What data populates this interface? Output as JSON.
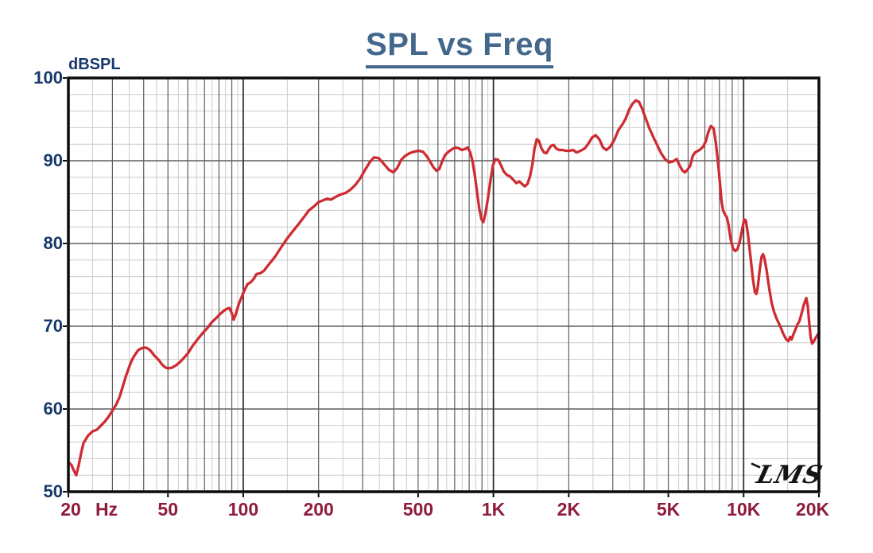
{
  "header": {
    "title": "SPL vs Freq"
  },
  "logo": {
    "text": "LMS"
  },
  "colors": {
    "curve": "#ce2b33",
    "title": "#44688c",
    "y_axis_text": "#17386b",
    "x_axis_text": "#8e1c3c",
    "grid_minor": "#cccccc",
    "grid_major": "#5e5e5e",
    "grid_decade": "#333333",
    "frame": "#0a0a0a",
    "logo": "#141414"
  },
  "chart_data": {
    "type": "line",
    "title": "SPL vs Freq",
    "ylabel": "dBSPL",
    "x_unit_label": "Hz",
    "x_scale": "log",
    "xlim": [
      20,
      20000
    ],
    "ylim": [
      50,
      100
    ],
    "y_major_step": 10,
    "y_minor_step": 2,
    "grid": "on",
    "legend": "none",
    "y_ticks": [
      100,
      90,
      80,
      70,
      60,
      50
    ],
    "x_ticks": [
      {
        "f": 20,
        "label": "20"
      },
      {
        "f": 50,
        "label": "50"
      },
      {
        "f": 100,
        "label": "100"
      },
      {
        "f": 200,
        "label": "200"
      },
      {
        "f": 500,
        "label": "500"
      },
      {
        "f": 1000,
        "label": "1K"
      },
      {
        "f": 2000,
        "label": "2K"
      },
      {
        "f": 5000,
        "label": "5K"
      },
      {
        "f": 10000,
        "label": "10K"
      },
      {
        "f": 20000,
        "label": "20K"
      }
    ],
    "series": [
      {
        "name": "SPL",
        "points": [
          [
            20,
            53.6
          ],
          [
            20.6,
            53.2
          ],
          [
            21,
            52.6
          ],
          [
            21.5,
            52.0
          ],
          [
            22,
            53.2
          ],
          [
            22.5,
            54.7
          ],
          [
            23,
            55.9
          ],
          [
            24,
            56.8
          ],
          [
            25,
            57.3
          ],
          [
            26,
            57.5
          ],
          [
            27,
            58.0
          ],
          [
            28,
            58.5
          ],
          [
            29,
            59.1
          ],
          [
            30,
            59.8
          ],
          [
            31,
            60.5
          ],
          [
            32,
            61.4
          ],
          [
            33,
            62.7
          ],
          [
            34,
            64.0
          ],
          [
            35,
            65.1
          ],
          [
            36,
            66.0
          ],
          [
            37,
            66.6
          ],
          [
            38,
            67.1
          ],
          [
            39,
            67.3
          ],
          [
            40,
            67.4
          ],
          [
            41,
            67.4
          ],
          [
            42,
            67.2
          ],
          [
            43,
            66.9
          ],
          [
            44,
            66.5
          ],
          [
            45,
            66.2
          ],
          [
            46,
            65.9
          ],
          [
            47,
            65.5
          ],
          [
            48,
            65.2
          ],
          [
            49,
            65.0
          ],
          [
            50,
            64.9
          ],
          [
            52,
            65.0
          ],
          [
            54,
            65.3
          ],
          [
            56,
            65.7
          ],
          [
            58,
            66.2
          ],
          [
            60,
            66.7
          ],
          [
            63,
            67.7
          ],
          [
            66,
            68.5
          ],
          [
            69,
            69.2
          ],
          [
            72,
            69.8
          ],
          [
            75,
            70.5
          ],
          [
            78,
            71.0
          ],
          [
            81,
            71.5
          ],
          [
            84,
            71.9
          ],
          [
            86,
            72.1
          ],
          [
            88,
            72.2
          ],
          [
            90,
            71.6
          ],
          [
            91.5,
            70.8
          ],
          [
            93,
            71.3
          ],
          [
            96,
            72.7
          ],
          [
            100,
            74.0
          ],
          [
            104,
            75.1
          ],
          [
            107,
            75.3
          ],
          [
            110,
            75.7
          ],
          [
            113,
            76.3
          ],
          [
            117,
            76.4
          ],
          [
            121,
            76.7
          ],
          [
            126,
            77.4
          ],
          [
            130,
            77.9
          ],
          [
            134,
            78.4
          ],
          [
            138,
            79.0
          ],
          [
            143,
            79.7
          ],
          [
            149,
            80.5
          ],
          [
            157,
            81.4
          ],
          [
            165,
            82.2
          ],
          [
            174,
            83.1
          ],
          [
            183,
            84.0
          ],
          [
            192,
            84.5
          ],
          [
            200,
            85.0
          ],
          [
            208,
            85.2
          ],
          [
            216,
            85.4
          ],
          [
            224,
            85.3
          ],
          [
            233,
            85.6
          ],
          [
            244,
            85.9
          ],
          [
            256,
            86.1
          ],
          [
            268,
            86.5
          ],
          [
            281,
            87.1
          ],
          [
            294,
            87.9
          ],
          [
            307,
            88.9
          ],
          [
            320,
            89.8
          ],
          [
            333,
            90.4
          ],
          [
            348,
            90.3
          ],
          [
            365,
            89.6
          ],
          [
            382,
            88.9
          ],
          [
            398,
            88.6
          ],
          [
            412,
            89.1
          ],
          [
            428,
            90.1
          ],
          [
            444,
            90.6
          ],
          [
            462,
            90.9
          ],
          [
            482,
            91.1
          ],
          [
            502,
            91.2
          ],
          [
            522,
            91.1
          ],
          [
            540,
            90.6
          ],
          [
            558,
            89.9
          ],
          [
            576,
            89.2
          ],
          [
            592,
            88.8
          ],
          [
            608,
            89.0
          ],
          [
            625,
            90.0
          ],
          [
            642,
            90.7
          ],
          [
            662,
            91.1
          ],
          [
            684,
            91.4
          ],
          [
            706,
            91.6
          ],
          [
            728,
            91.5
          ],
          [
            748,
            91.3
          ],
          [
            768,
            91.4
          ],
          [
            788,
            91.6
          ],
          [
            806,
            91.1
          ],
          [
            824,
            90.0
          ],
          [
            842,
            88.3
          ],
          [
            860,
            86.2
          ],
          [
            878,
            84.2
          ],
          [
            896,
            82.9
          ],
          [
            912,
            82.6
          ],
          [
            930,
            83.7
          ],
          [
            952,
            85.6
          ],
          [
            974,
            87.7
          ],
          [
            996,
            89.5
          ],
          [
            1020,
            90.2
          ],
          [
            1045,
            90.1
          ],
          [
            1070,
            89.5
          ],
          [
            1100,
            88.7
          ],
          [
            1130,
            88.3
          ],
          [
            1165,
            88.1
          ],
          [
            1200,
            87.7
          ],
          [
            1235,
            87.3
          ],
          [
            1268,
            87.5
          ],
          [
            1300,
            87.2
          ],
          [
            1335,
            86.9
          ],
          [
            1368,
            87.2
          ],
          [
            1400,
            88.1
          ],
          [
            1430,
            89.5
          ],
          [
            1460,
            91.5
          ],
          [
            1490,
            92.6
          ],
          [
            1520,
            92.4
          ],
          [
            1556,
            91.5
          ],
          [
            1592,
            91.0
          ],
          [
            1628,
            90.9
          ],
          [
            1664,
            91.4
          ],
          [
            1700,
            91.8
          ],
          [
            1740,
            91.9
          ],
          [
            1780,
            91.5
          ],
          [
            1830,
            91.3
          ],
          [
            1890,
            91.3
          ],
          [
            1950,
            91.2
          ],
          [
            2010,
            91.2
          ],
          [
            2080,
            91.3
          ],
          [
            2150,
            91.0
          ],
          [
            2230,
            91.2
          ],
          [
            2320,
            91.5
          ],
          [
            2400,
            92.1
          ],
          [
            2480,
            92.8
          ],
          [
            2560,
            93.1
          ],
          [
            2650,
            92.6
          ],
          [
            2740,
            91.6
          ],
          [
            2830,
            91.3
          ],
          [
            2930,
            91.7
          ],
          [
            3040,
            92.5
          ],
          [
            3160,
            93.7
          ],
          [
            3280,
            94.4
          ],
          [
            3380,
            95.1
          ],
          [
            3490,
            96.2
          ],
          [
            3600,
            96.9
          ],
          [
            3710,
            97.3
          ],
          [
            3820,
            97.1
          ],
          [
            3930,
            96.3
          ],
          [
            4050,
            95.2
          ],
          [
            4190,
            94.0
          ],
          [
            4350,
            92.9
          ],
          [
            4510,
            91.9
          ],
          [
            4680,
            90.9
          ],
          [
            4850,
            90.2
          ],
          [
            5030,
            89.8
          ],
          [
            5210,
            89.9
          ],
          [
            5400,
            90.2
          ],
          [
            5530,
            89.5
          ],
          [
            5700,
            88.8
          ],
          [
            5830,
            88.6
          ],
          [
            5960,
            88.9
          ],
          [
            6120,
            89.4
          ],
          [
            6260,
            90.6
          ],
          [
            6400,
            91.0
          ],
          [
            6580,
            91.2
          ],
          [
            6730,
            91.4
          ],
          [
            6890,
            91.7
          ],
          [
            7070,
            92.4
          ],
          [
            7230,
            93.5
          ],
          [
            7400,
            94.2
          ],
          [
            7590,
            93.9
          ],
          [
            7750,
            92.1
          ],
          [
            7920,
            89.5
          ],
          [
            8040,
            87.3
          ],
          [
            8160,
            85.1
          ],
          [
            8280,
            84.0
          ],
          [
            8420,
            83.5
          ],
          [
            8560,
            83.2
          ],
          [
            8700,
            82.3
          ],
          [
            8880,
            80.5
          ],
          [
            9070,
            79.4
          ],
          [
            9250,
            79.1
          ],
          [
            9450,
            79.3
          ],
          [
            9650,
            80.2
          ],
          [
            9850,
            81.6
          ],
          [
            10050,
            82.9
          ],
          [
            10200,
            82.8
          ],
          [
            10400,
            81.2
          ],
          [
            10650,
            78.4
          ],
          [
            10900,
            75.6
          ],
          [
            11100,
            74.1
          ],
          [
            11250,
            73.9
          ],
          [
            11400,
            74.8
          ],
          [
            11600,
            76.9
          ],
          [
            11800,
            78.4
          ],
          [
            11950,
            78.7
          ],
          [
            12100,
            78.3
          ],
          [
            12350,
            76.8
          ],
          [
            12650,
            74.6
          ],
          [
            12950,
            72.8
          ],
          [
            13250,
            71.7
          ],
          [
            13600,
            70.8
          ],
          [
            14000,
            70.0
          ],
          [
            14400,
            69.1
          ],
          [
            14800,
            68.4
          ],
          [
            15100,
            68.2
          ],
          [
            15350,
            68.7
          ],
          [
            15550,
            68.4
          ],
          [
            15800,
            69.0
          ],
          [
            16100,
            69.6
          ],
          [
            16400,
            70.2
          ],
          [
            16700,
            70.6
          ],
          [
            17000,
            71.4
          ],
          [
            17400,
            72.6
          ],
          [
            17800,
            73.4
          ],
          [
            18050,
            72.4
          ],
          [
            18300,
            70.3
          ],
          [
            18550,
            68.6
          ],
          [
            18800,
            67.9
          ],
          [
            19100,
            68.2
          ],
          [
            19500,
            68.7
          ],
          [
            20000,
            69.2
          ]
        ]
      }
    ]
  }
}
